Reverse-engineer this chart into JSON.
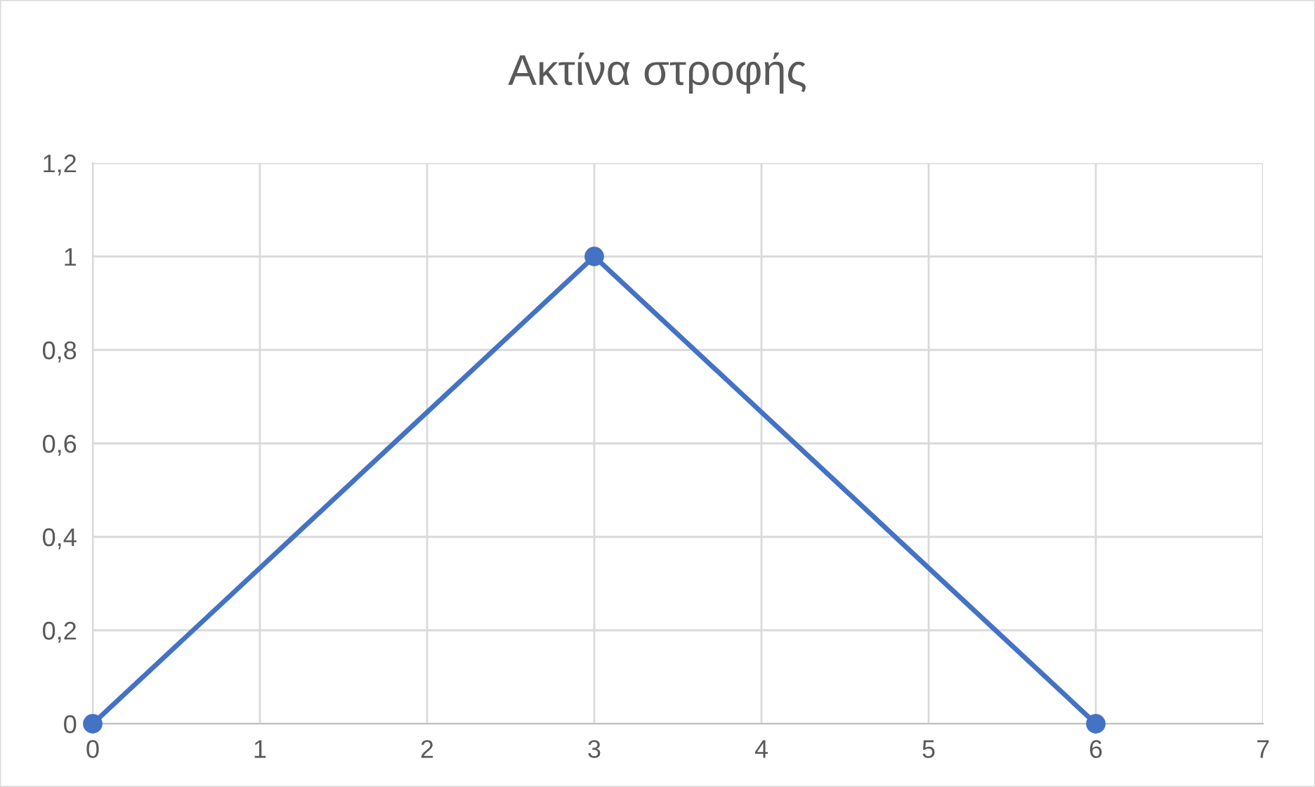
{
  "chart_data": {
    "type": "line",
    "title": "Ακτίνα στροφής",
    "x": [
      0,
      3,
      6
    ],
    "series": [
      {
        "color": "#4472c4",
        "values": [
          0,
          1,
          0
        ]
      }
    ],
    "xlim": [
      0,
      7
    ],
    "xticks": [
      0,
      1,
      2,
      3,
      4,
      5,
      6,
      7
    ],
    "ylim": [
      0,
      1.2
    ],
    "yticks": [
      0,
      {
        "value": 0.2,
        "label": "0,2"
      },
      {
        "value": 0.4,
        "label": "0,4"
      },
      {
        "value": 0.6,
        "label": "0,6"
      },
      {
        "value": 0.8,
        "label": "0,8"
      },
      1,
      {
        "value": 1.2,
        "label": "1,2"
      }
    ],
    "grid": true,
    "marker": "circle",
    "line_style": "solid"
  }
}
